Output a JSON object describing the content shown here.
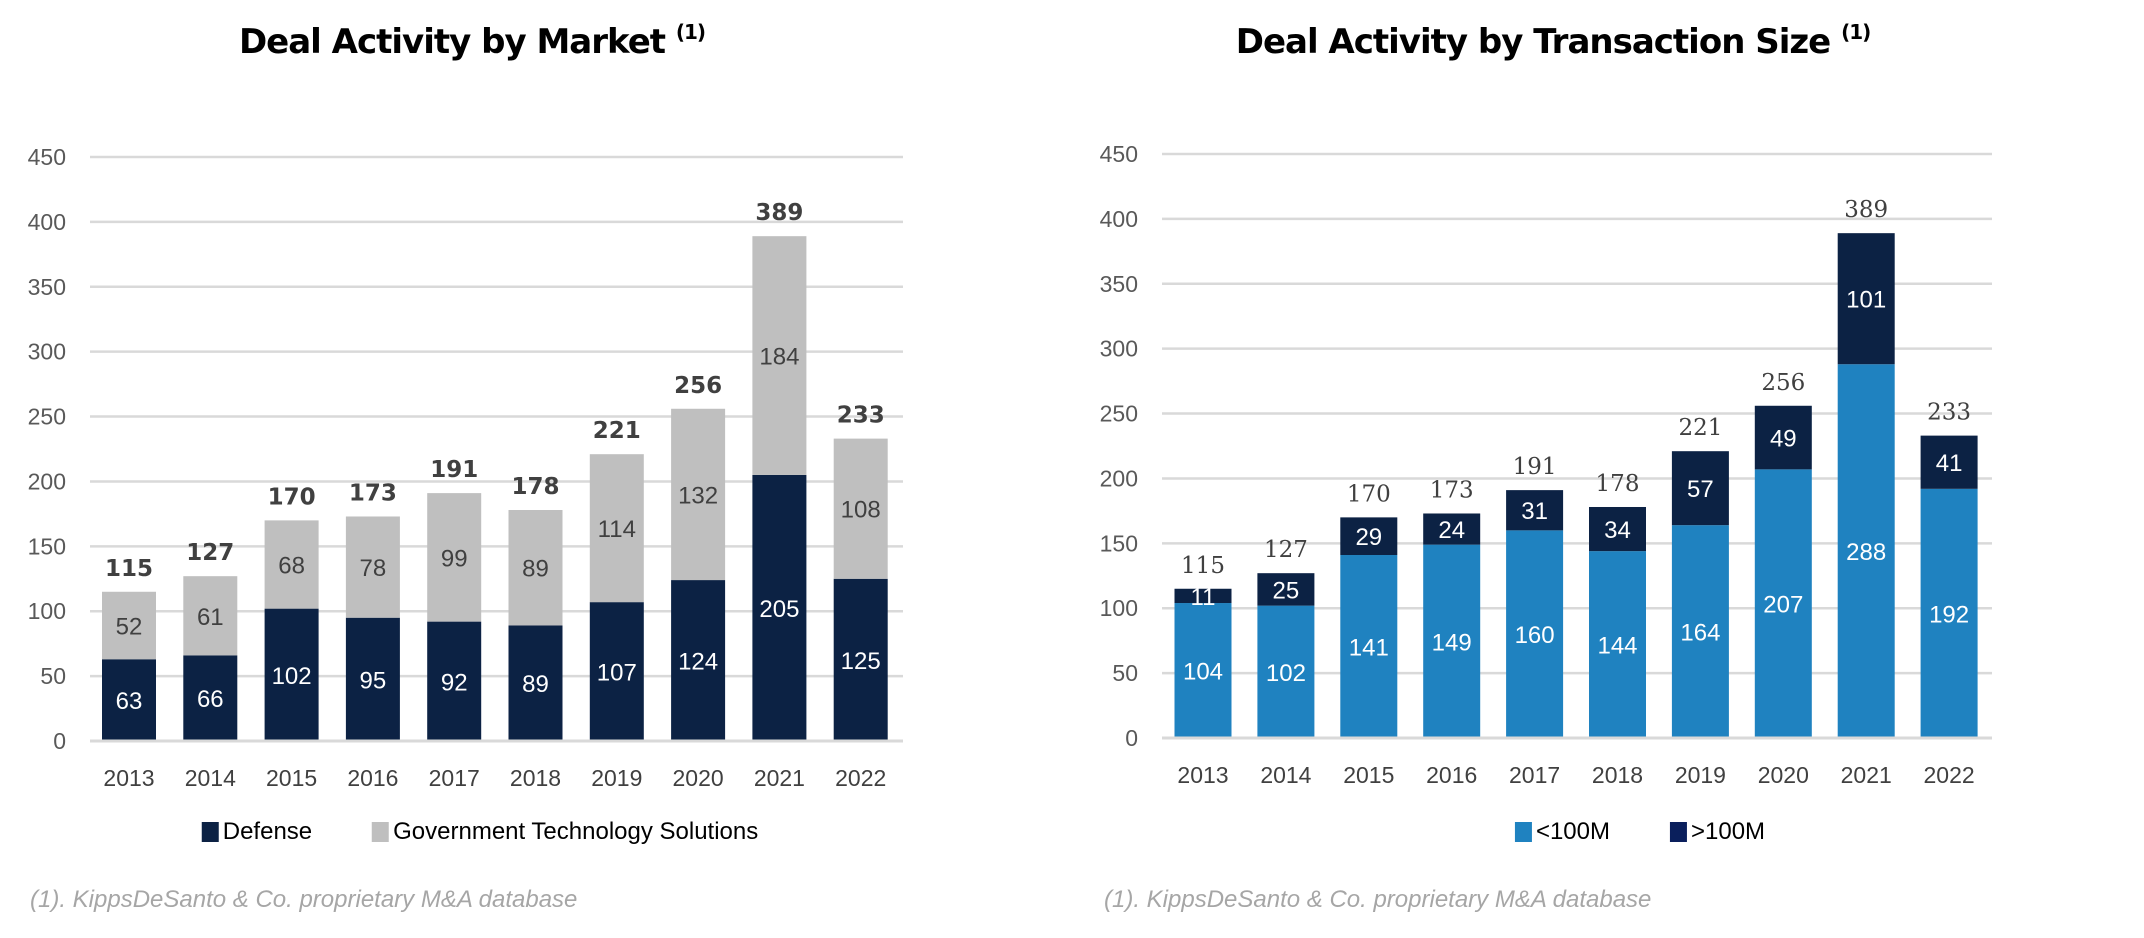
{
  "chart_data": [
    {
      "type": "bar",
      "stacked": true,
      "title": "Deal Activity by Market",
      "title_note": "(1)",
      "categories": [
        "2013",
        "2014",
        "2015",
        "2016",
        "2017",
        "2018",
        "2019",
        "2020",
        "2021",
        "2022"
      ],
      "series": [
        {
          "name": "Defense",
          "color": "#0c2244",
          "label_color": "#ffffff",
          "values": [
            63,
            66,
            102,
            95,
            92,
            89,
            107,
            124,
            205,
            125
          ]
        },
        {
          "name": "Government Technology Solutions",
          "color": "#bfbfbf",
          "label_color": "#404040",
          "values": [
            52,
            61,
            68,
            78,
            99,
            89,
            114,
            132,
            184,
            108
          ]
        }
      ],
      "totals": [
        115,
        127,
        170,
        173,
        191,
        178,
        221,
        256,
        389,
        233
      ],
      "ylim": [
        0,
        450
      ],
      "yticks": [
        0,
        50,
        100,
        150,
        200,
        250,
        300,
        350,
        400,
        450
      ],
      "grid": true,
      "legend": "bottom",
      "xlabel": "",
      "ylabel": "",
      "footnote": "(1). KippsDeSanto & Co. proprietary M&A database"
    },
    {
      "type": "bar",
      "stacked": true,
      "title": "Deal Activity by Transaction Size",
      "title_note": "(1)",
      "categories": [
        "2013",
        "2014",
        "2015",
        "2016",
        "2017",
        "2018",
        "2019",
        "2020",
        "2021",
        "2022"
      ],
      "series": [
        {
          "name": "<100M",
          "color": "#1f82c0",
          "label_color": "#ffffff",
          "values": [
            104,
            102,
            141,
            149,
            160,
            144,
            164,
            207,
            288,
            192
          ]
        },
        {
          "name": ">100M",
          "color": "#0c2244",
          "label_color": "#ffffff",
          "values": [
            11,
            25,
            29,
            24,
            31,
            34,
            57,
            49,
            101,
            41
          ]
        }
      ],
      "totals": [
        115,
        127,
        170,
        173,
        191,
        178,
        221,
        256,
        389,
        233
      ],
      "ylim": [
        0,
        450
      ],
      "yticks": [
        0,
        50,
        100,
        150,
        200,
        250,
        300,
        350,
        400,
        450
      ],
      "grid": true,
      "legend": "bottom",
      "xlabel": "",
      "ylabel": "",
      "footnote": "(1). KippsDeSanto & Co. proprietary M&A database"
    }
  ]
}
